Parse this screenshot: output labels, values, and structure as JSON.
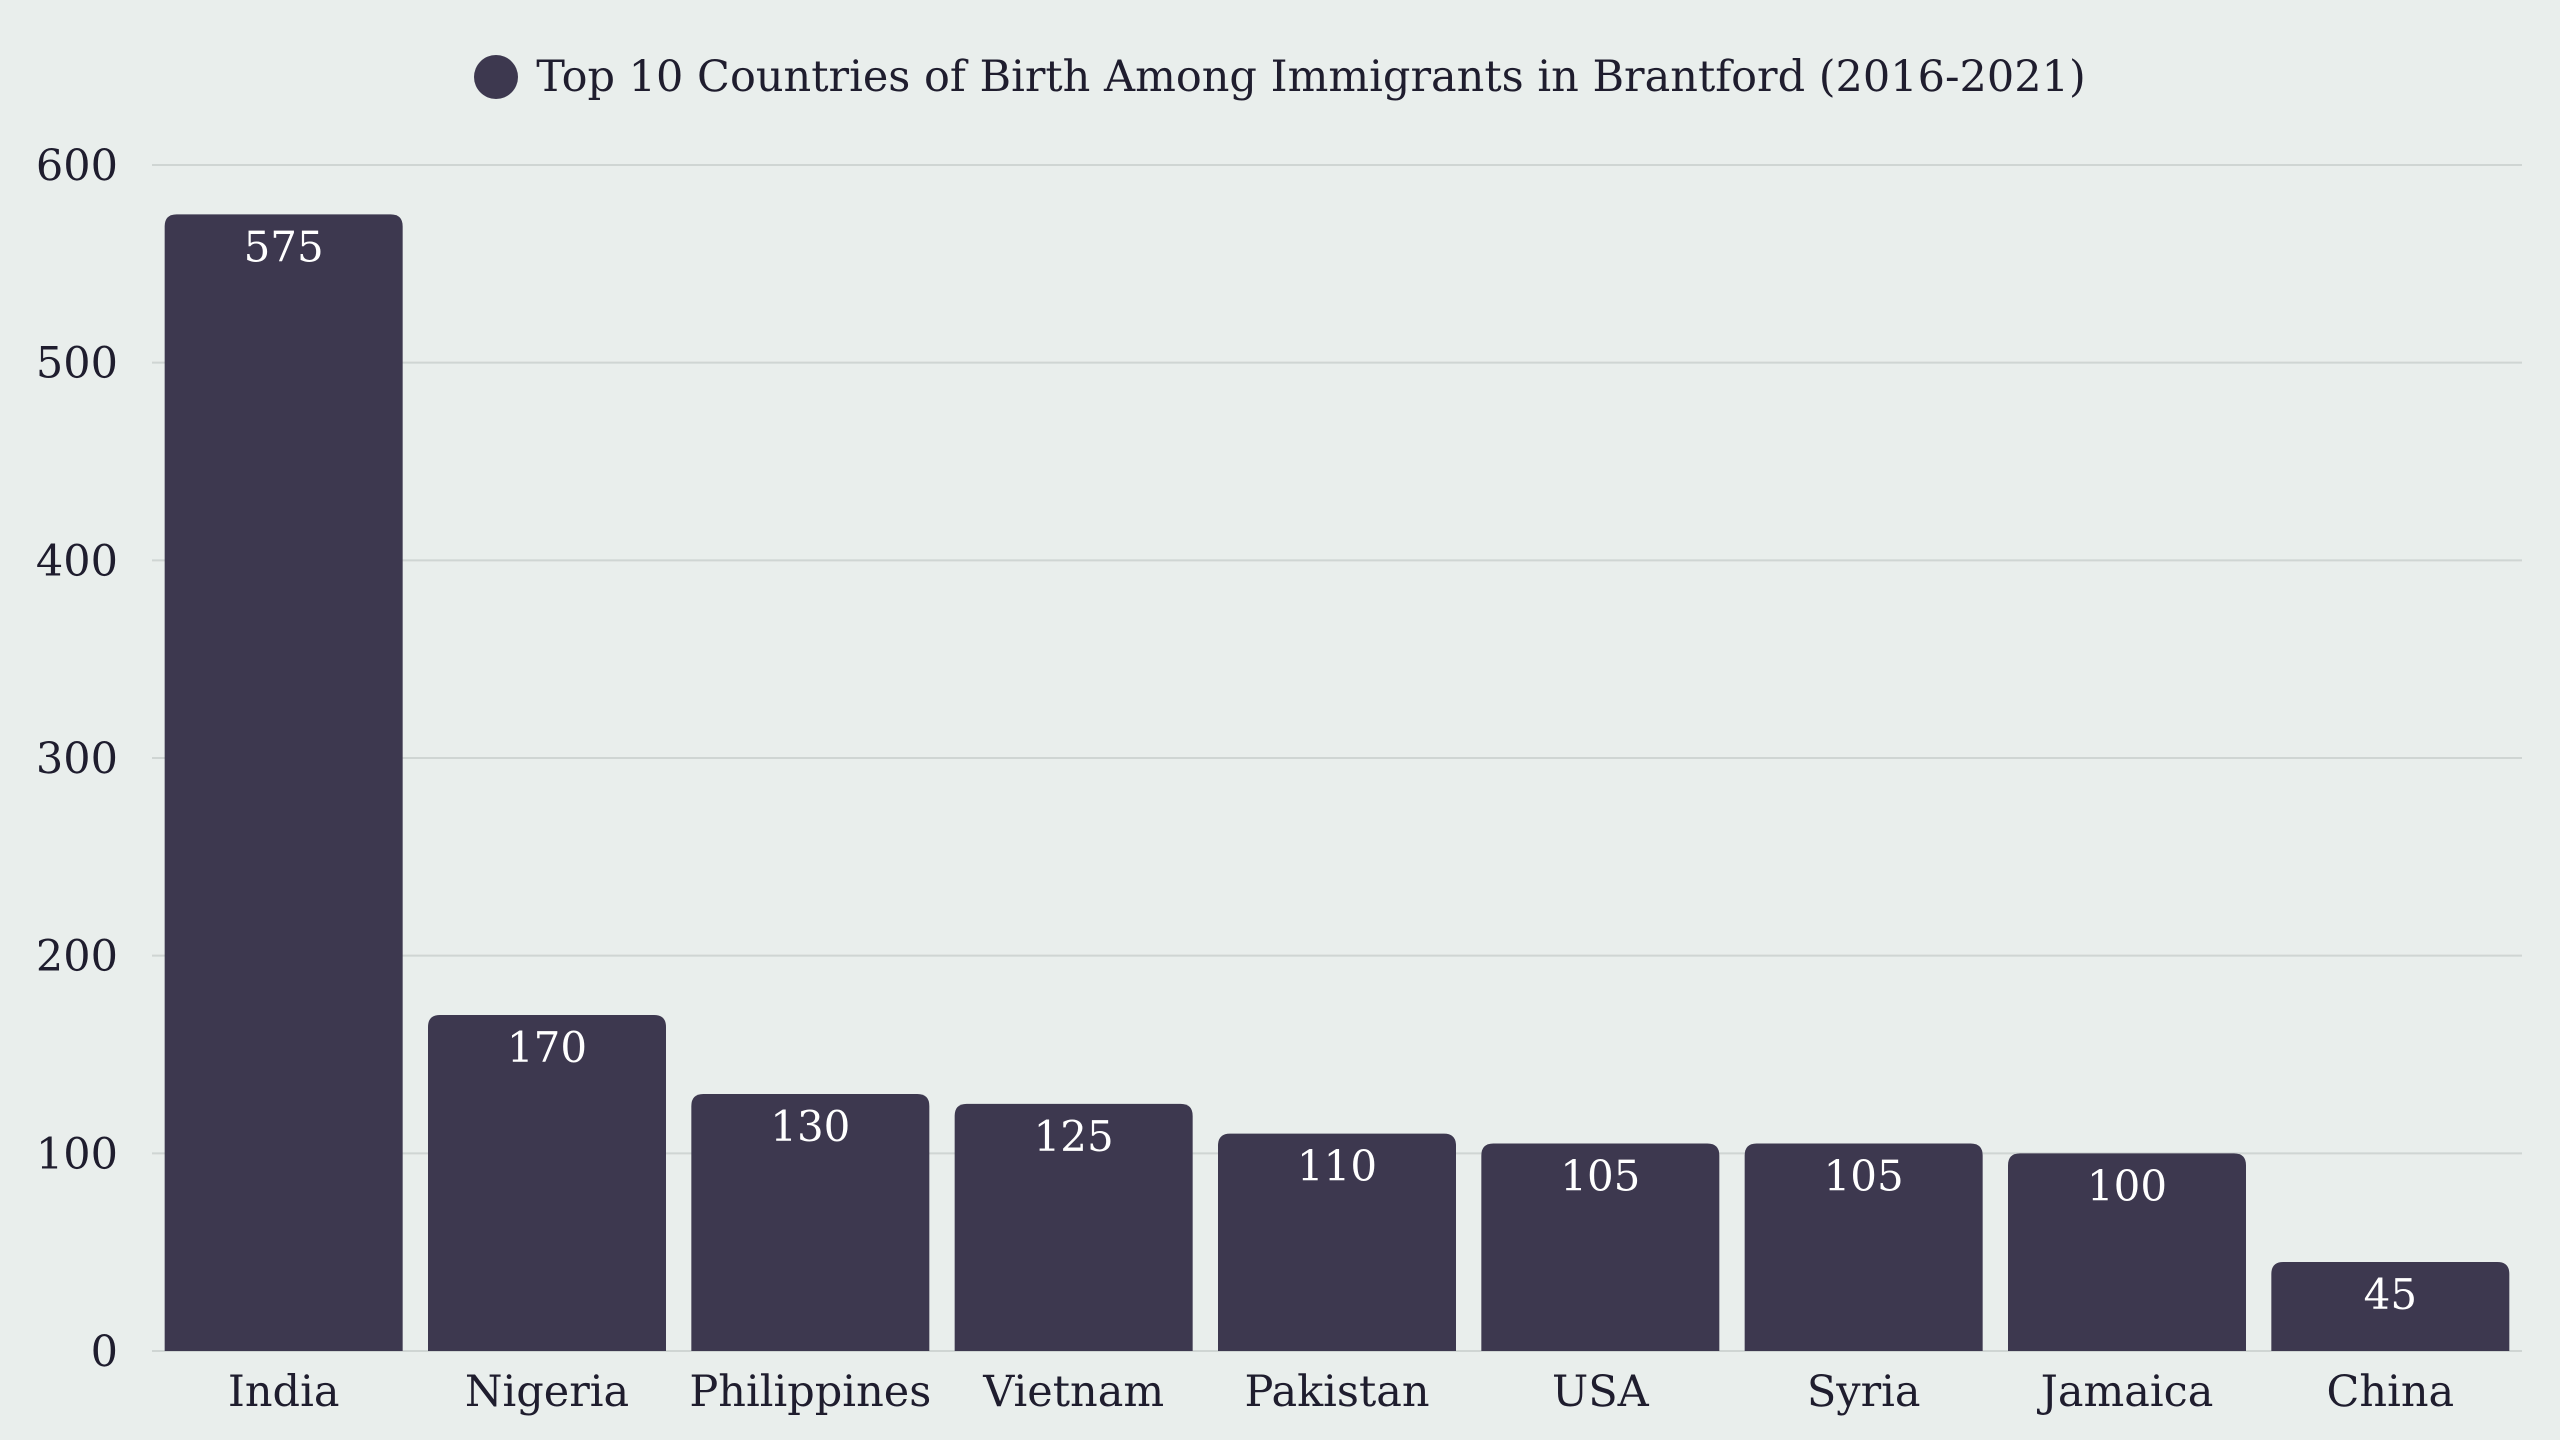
{
  "colors": {
    "background": "#e9eeec",
    "bar": "#3d384f",
    "grid": "#cfd5d3",
    "text": "#1f1d2e",
    "bar_label": "#ffffff"
  },
  "chart_data": {
    "type": "bar",
    "categories": [
      "India",
      "Nigeria",
      "Philippines",
      "Vietnam",
      "Pakistan",
      "USA",
      "Syria",
      "Jamaica",
      "China"
    ],
    "series": [
      {
        "name": "Top 10 Countries of Birth Among Immigrants in Brantford (2016-2021)",
        "values": [
          575,
          170,
          130,
          125,
          110,
          105,
          105,
          100,
          45
        ]
      }
    ],
    "ylim": [
      0,
      600
    ],
    "yticks": [
      0,
      100,
      200,
      300,
      400,
      500,
      600
    ],
    "grid": true,
    "legend_position": "top-center",
    "data_labels": true
  }
}
